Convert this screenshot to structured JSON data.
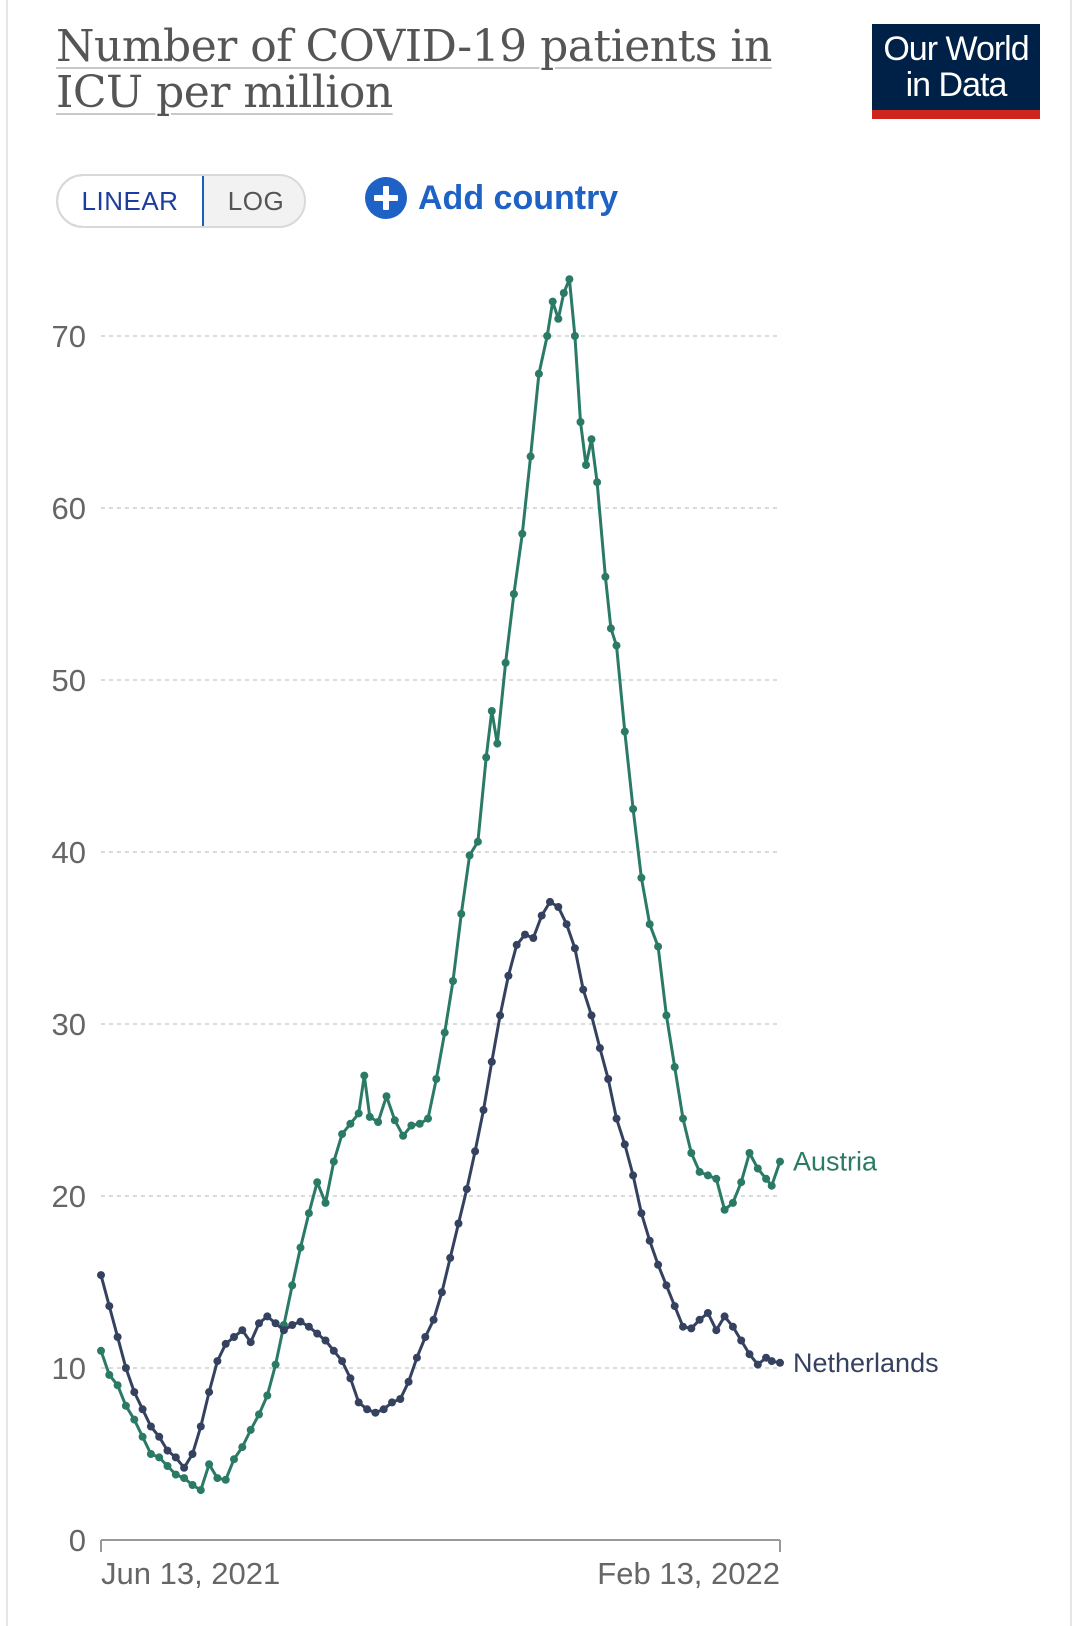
{
  "title": "Number of COVID-19 patients in ICU per million",
  "logo": {
    "line1": "Our World",
    "line2": "in Data"
  },
  "scale_toggle": {
    "linear_label": "LINEAR",
    "log_label": "LOG",
    "selected": "LINEAR"
  },
  "add_country": {
    "label": "Add country",
    "icon": "plus-circle-icon"
  },
  "colors": {
    "austria": "#2a7a66",
    "netherlands": "#35425f",
    "accent": "#1d62c4",
    "grid": "#cfcfcf",
    "axis_text": "#666666"
  },
  "chart_data": {
    "type": "line",
    "title": "Number of COVID-19 patients in ICU per million",
    "xlabel": "",
    "ylabel": "",
    "x_range": [
      "2021-06-13",
      "2022-02-13"
    ],
    "x_tick_labels": [
      "Jun 13, 2021",
      "Feb 13, 2022"
    ],
    "ylim": [
      0,
      75
    ],
    "y_ticks": [
      0,
      10,
      20,
      30,
      40,
      50,
      60,
      70
    ],
    "grid": "horizontal dashed",
    "legend": "series labels at right end of lines",
    "series": [
      {
        "name": "Austria",
        "points": [
          [
            "2021-06-13",
            11.0
          ],
          [
            "2021-06-16",
            9.6
          ],
          [
            "2021-06-19",
            9.0
          ],
          [
            "2021-06-22",
            7.8
          ],
          [
            "2021-06-25",
            7.0
          ],
          [
            "2021-06-28",
            6.0
          ],
          [
            "2021-07-01",
            5.0
          ],
          [
            "2021-07-04",
            4.8
          ],
          [
            "2021-07-07",
            4.3
          ],
          [
            "2021-07-10",
            3.8
          ],
          [
            "2021-07-13",
            3.6
          ],
          [
            "2021-07-16",
            3.2
          ],
          [
            "2021-07-19",
            2.9
          ],
          [
            "2021-07-22",
            4.4
          ],
          [
            "2021-07-25",
            3.6
          ],
          [
            "2021-07-28",
            3.5
          ],
          [
            "2021-07-31",
            4.7
          ],
          [
            "2021-08-03",
            5.4
          ],
          [
            "2021-08-06",
            6.4
          ],
          [
            "2021-08-09",
            7.3
          ],
          [
            "2021-08-12",
            8.4
          ],
          [
            "2021-08-15",
            10.2
          ],
          [
            "2021-08-18",
            12.5
          ],
          [
            "2021-08-21",
            14.8
          ],
          [
            "2021-08-24",
            17.0
          ],
          [
            "2021-08-27",
            19.0
          ],
          [
            "2021-08-30",
            20.8
          ],
          [
            "2021-09-02",
            19.6
          ],
          [
            "2021-09-05",
            22.0
          ],
          [
            "2021-09-08",
            23.6
          ],
          [
            "2021-09-11",
            24.2
          ],
          [
            "2021-09-14",
            24.8
          ],
          [
            "2021-09-16",
            27.0
          ],
          [
            "2021-09-18",
            24.6
          ],
          [
            "2021-09-21",
            24.3
          ],
          [
            "2021-09-24",
            25.8
          ],
          [
            "2021-09-27",
            24.4
          ],
          [
            "2021-09-30",
            23.5
          ],
          [
            "2021-10-03",
            24.1
          ],
          [
            "2021-10-06",
            24.2
          ],
          [
            "2021-10-09",
            24.5
          ],
          [
            "2021-10-12",
            26.8
          ],
          [
            "2021-10-15",
            29.5
          ],
          [
            "2021-10-18",
            32.5
          ],
          [
            "2021-10-21",
            36.4
          ],
          [
            "2021-10-24",
            39.8
          ],
          [
            "2021-10-27",
            40.6
          ],
          [
            "2021-10-30",
            45.5
          ],
          [
            "2021-11-01",
            48.2
          ],
          [
            "2021-11-03",
            46.3
          ],
          [
            "2021-11-06",
            51.0
          ],
          [
            "2021-11-09",
            55.0
          ],
          [
            "2021-11-12",
            58.5
          ],
          [
            "2021-11-15",
            63.0
          ],
          [
            "2021-11-18",
            67.8
          ],
          [
            "2021-11-21",
            70.0
          ],
          [
            "2021-11-23",
            72.0
          ],
          [
            "2021-11-25",
            71.0
          ],
          [
            "2021-11-27",
            72.5
          ],
          [
            "2021-11-29",
            73.3
          ],
          [
            "2021-12-01",
            70.0
          ],
          [
            "2021-12-03",
            65.0
          ],
          [
            "2021-12-05",
            62.5
          ],
          [
            "2021-12-07",
            64.0
          ],
          [
            "2021-12-09",
            61.5
          ],
          [
            "2021-12-12",
            56.0
          ],
          [
            "2021-12-14",
            53.0
          ],
          [
            "2021-12-16",
            52.0
          ],
          [
            "2021-12-19",
            47.0
          ],
          [
            "2021-12-22",
            42.5
          ],
          [
            "2021-12-25",
            38.5
          ],
          [
            "2021-12-28",
            35.8
          ],
          [
            "2021-12-31",
            34.5
          ],
          [
            "2022-01-03",
            30.5
          ],
          [
            "2022-01-06",
            27.5
          ],
          [
            "2022-01-09",
            24.5
          ],
          [
            "2022-01-12",
            22.5
          ],
          [
            "2022-01-15",
            21.4
          ],
          [
            "2022-01-18",
            21.2
          ],
          [
            "2022-01-21",
            21.0
          ],
          [
            "2022-01-24",
            19.2
          ],
          [
            "2022-01-27",
            19.6
          ],
          [
            "2022-01-30",
            20.8
          ],
          [
            "2022-02-02",
            22.5
          ],
          [
            "2022-02-05",
            21.6
          ],
          [
            "2022-02-08",
            21.0
          ],
          [
            "2022-02-10",
            20.6
          ],
          [
            "2022-02-13",
            22.0
          ]
        ]
      },
      {
        "name": "Netherlands",
        "points": [
          [
            "2021-06-13",
            15.4
          ],
          [
            "2021-06-16",
            13.6
          ],
          [
            "2021-06-19",
            11.8
          ],
          [
            "2021-06-22",
            10.0
          ],
          [
            "2021-06-25",
            8.6
          ],
          [
            "2021-06-28",
            7.6
          ],
          [
            "2021-07-01",
            6.6
          ],
          [
            "2021-07-04",
            6.0
          ],
          [
            "2021-07-07",
            5.2
          ],
          [
            "2021-07-10",
            4.8
          ],
          [
            "2021-07-13",
            4.2
          ],
          [
            "2021-07-16",
            5.0
          ],
          [
            "2021-07-19",
            6.6
          ],
          [
            "2021-07-22",
            8.6
          ],
          [
            "2021-07-25",
            10.4
          ],
          [
            "2021-07-28",
            11.4
          ],
          [
            "2021-07-31",
            11.8
          ],
          [
            "2021-08-03",
            12.2
          ],
          [
            "2021-08-06",
            11.5
          ],
          [
            "2021-08-09",
            12.6
          ],
          [
            "2021-08-12",
            13.0
          ],
          [
            "2021-08-15",
            12.6
          ],
          [
            "2021-08-18",
            12.2
          ],
          [
            "2021-08-21",
            12.5
          ],
          [
            "2021-08-24",
            12.7
          ],
          [
            "2021-08-27",
            12.4
          ],
          [
            "2021-08-30",
            12.0
          ],
          [
            "2021-09-02",
            11.6
          ],
          [
            "2021-09-05",
            11.0
          ],
          [
            "2021-09-08",
            10.4
          ],
          [
            "2021-09-11",
            9.4
          ],
          [
            "2021-09-14",
            8.0
          ],
          [
            "2021-09-17",
            7.6
          ],
          [
            "2021-09-20",
            7.4
          ],
          [
            "2021-09-23",
            7.6
          ],
          [
            "2021-09-26",
            8.0
          ],
          [
            "2021-09-29",
            8.2
          ],
          [
            "2021-10-02",
            9.2
          ],
          [
            "2021-10-05",
            10.6
          ],
          [
            "2021-10-08",
            11.8
          ],
          [
            "2021-10-11",
            12.8
          ],
          [
            "2021-10-14",
            14.4
          ],
          [
            "2021-10-17",
            16.4
          ],
          [
            "2021-10-20",
            18.4
          ],
          [
            "2021-10-23",
            20.4
          ],
          [
            "2021-10-26",
            22.6
          ],
          [
            "2021-10-29",
            25.0
          ],
          [
            "2021-11-01",
            27.8
          ],
          [
            "2021-11-04",
            30.5
          ],
          [
            "2021-11-07",
            32.8
          ],
          [
            "2021-11-10",
            34.6
          ],
          [
            "2021-11-13",
            35.2
          ],
          [
            "2021-11-16",
            35.0
          ],
          [
            "2021-11-19",
            36.3
          ],
          [
            "2021-11-22",
            37.1
          ],
          [
            "2021-11-25",
            36.8
          ],
          [
            "2021-11-28",
            35.8
          ],
          [
            "2021-12-01",
            34.4
          ],
          [
            "2021-12-04",
            32.0
          ],
          [
            "2021-12-07",
            30.5
          ],
          [
            "2021-12-10",
            28.6
          ],
          [
            "2021-12-13",
            26.8
          ],
          [
            "2021-12-16",
            24.5
          ],
          [
            "2021-12-19",
            23.0
          ],
          [
            "2021-12-22",
            21.2
          ],
          [
            "2021-12-25",
            19.0
          ],
          [
            "2021-12-28",
            17.4
          ],
          [
            "2021-12-31",
            16.0
          ],
          [
            "2022-01-03",
            14.8
          ],
          [
            "2022-01-06",
            13.6
          ],
          [
            "2022-01-09",
            12.4
          ],
          [
            "2022-01-12",
            12.3
          ],
          [
            "2022-01-15",
            12.8
          ],
          [
            "2022-01-18",
            13.2
          ],
          [
            "2022-01-21",
            12.2
          ],
          [
            "2022-01-24",
            13.0
          ],
          [
            "2022-01-27",
            12.4
          ],
          [
            "2022-01-30",
            11.6
          ],
          [
            "2022-02-02",
            10.8
          ],
          [
            "2022-02-05",
            10.2
          ],
          [
            "2022-02-08",
            10.6
          ],
          [
            "2022-02-10",
            10.4
          ],
          [
            "2022-02-13",
            10.3
          ]
        ]
      }
    ]
  }
}
